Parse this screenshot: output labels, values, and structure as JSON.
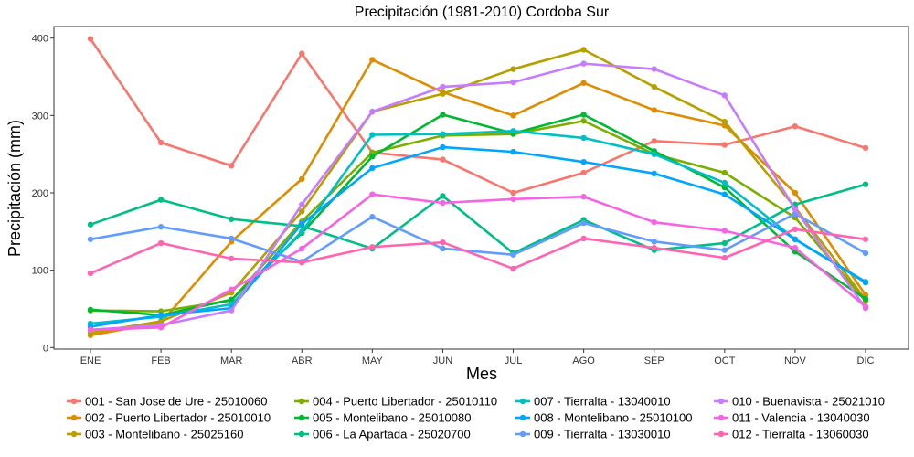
{
  "chart_data": {
    "type": "line",
    "title": "Precipitación (1981-2010)  Cordoba Sur",
    "xlabel": "Mes",
    "ylabel": "Precipitación (mm)",
    "categories": [
      "ENE",
      "FEB",
      "MAR",
      "ABR",
      "MAY",
      "JUN",
      "JUL",
      "AGO",
      "SEP",
      "OCT",
      "NOV",
      "DIC"
    ],
    "yticks": [
      0,
      100,
      200,
      300,
      400
    ],
    "ylim": [
      -2,
      415
    ],
    "grid": false,
    "legend_position": "bottom",
    "series": [
      {
        "name": "001 - San Jose de Ure - 25010060",
        "color": "#F8766D",
        "values": [
          399,
          265,
          235,
          380,
          252,
          243,
          200,
          226,
          267,
          262,
          286,
          258
        ]
      },
      {
        "name": "002 - Puerto Libertador - 25010010",
        "color": "#DE8C00",
        "values": [
          16,
          32,
          137,
          218,
          372,
          330,
          300,
          342,
          307,
          287,
          200,
          68
        ]
      },
      {
        "name": "003 - Montelibano - 25025160",
        "color": "#B79F00",
        "values": [
          19,
          34,
          71,
          176,
          305,
          328,
          360,
          385,
          337,
          292,
          181,
          62
        ]
      },
      {
        "name": "004 - Puerto Libertador - 25010110",
        "color": "#7CAE00",
        "values": [
          48,
          47,
          61,
          163,
          252,
          274,
          276,
          293,
          250,
          226,
          168,
          60
        ]
      },
      {
        "name": "005 - Montelibano - 25010080",
        "color": "#00B933",
        "values": [
          49,
          42,
          62,
          148,
          247,
          301,
          277,
          301,
          254,
          207,
          124,
          63
        ]
      },
      {
        "name": "006 - La Apartada - 25020700",
        "color": "#00BE86",
        "values": [
          159,
          191,
          166,
          157,
          128,
          196,
          122,
          165,
          126,
          135,
          185,
          211
        ]
      },
      {
        "name": "007 - Tierralta - 13040010",
        "color": "#00BFC4",
        "values": [
          31,
          40,
          56,
          150,
          275,
          276,
          280,
          271,
          250,
          213,
          140,
          84
        ]
      },
      {
        "name": "008 - Montelibano - 25010100",
        "color": "#00A5FF",
        "values": [
          27,
          42,
          51,
          160,
          232,
          259,
          253,
          240,
          225,
          198,
          140,
          85
        ]
      },
      {
        "name": "009 - Tierralta - 13030010",
        "color": "#619CFF",
        "values": [
          140,
          156,
          141,
          111,
          169,
          128,
          120,
          161,
          137,
          126,
          173,
          122
        ]
      },
      {
        "name": "010 - Buenavista - 25021010",
        "color": "#C77CFF",
        "values": [
          23,
          29,
          48,
          185,
          305,
          337,
          343,
          367,
          360,
          326,
          179,
          51
        ]
      },
      {
        "name": "011 - Valencia - 13040030",
        "color": "#F564E3",
        "values": [
          23,
          26,
          75,
          128,
          198,
          187,
          192,
          195,
          162,
          151,
          129,
          53
        ]
      },
      {
        "name": "012 - Tierralta - 13060030",
        "color": "#FF64B0",
        "values": [
          96,
          135,
          115,
          110,
          130,
          136,
          102,
          141,
          129,
          116,
          153,
          140
        ]
      }
    ]
  }
}
